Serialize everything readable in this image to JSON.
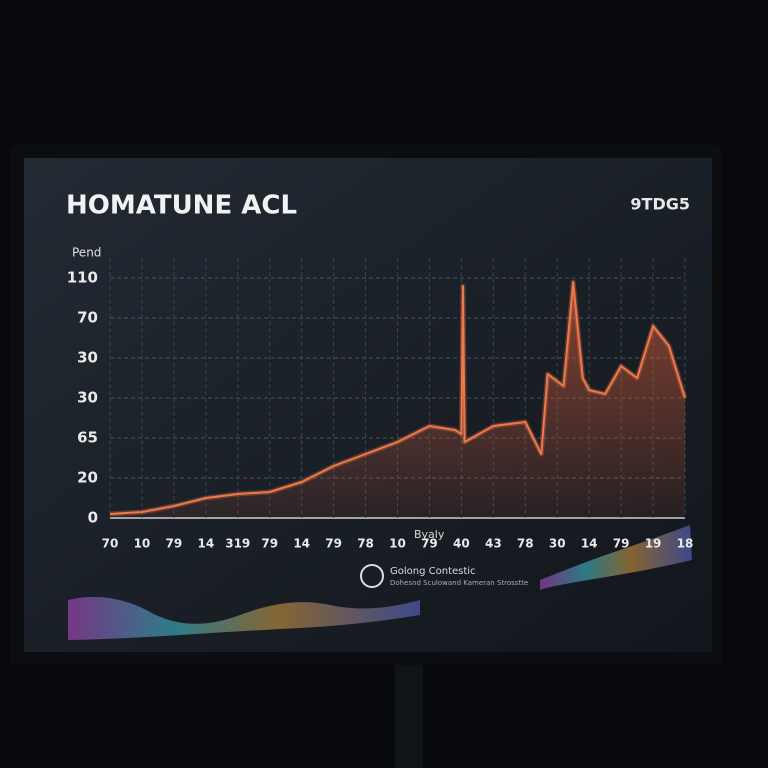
{
  "chart_data": {
    "type": "line",
    "title": "HOMATUNE ACL",
    "badge": "9TDG5",
    "y_label": "Pend",
    "x_label": "Byaly",
    "footer_title": "Golong Contestic",
    "footer_subtitle": "Dohesnd Sculowand Kameran Strosstte",
    "color": "#f0784a",
    "grid": true,
    "xlim": [
      0,
      18
    ],
    "ylim": [
      0,
      6
    ],
    "yticks": [
      {
        "value": 0,
        "label": "0"
      },
      {
        "value": 1,
        "label": "20"
      },
      {
        "value": 2,
        "label": "65"
      },
      {
        "value": 3,
        "label": "30"
      },
      {
        "value": 4,
        "label": "30"
      },
      {
        "value": 5,
        "label": "70"
      },
      {
        "value": 6,
        "label": "110"
      }
    ],
    "xticks": [
      {
        "value": 0,
        "label": "70"
      },
      {
        "value": 1,
        "label": "10"
      },
      {
        "value": 2,
        "label": "79"
      },
      {
        "value": 3,
        "label": "14"
      },
      {
        "value": 4,
        "label": "319"
      },
      {
        "value": 5,
        "label": "79"
      },
      {
        "value": 6,
        "label": "14"
      },
      {
        "value": 7,
        "label": "79"
      },
      {
        "value": 8,
        "label": "78"
      },
      {
        "value": 9,
        "label": "10"
      },
      {
        "value": 10,
        "label": "79"
      },
      {
        "value": 11,
        "label": "40"
      },
      {
        "value": 12,
        "label": "43"
      },
      {
        "value": 13,
        "label": "78"
      },
      {
        "value": 14,
        "label": "30"
      },
      {
        "value": 15,
        "label": "14"
      },
      {
        "value": 16,
        "label": "79"
      },
      {
        "value": 17,
        "label": "19"
      },
      {
        "value": 18,
        "label": "18"
      }
    ],
    "x": [
      0,
      1,
      2,
      3,
      4,
      5,
      6,
      7,
      8,
      9,
      10,
      10.8,
      11,
      11.05,
      11.1,
      12,
      13,
      13.5,
      13.7,
      14.2,
      14.5,
      14.8,
      15,
      15.5,
      16,
      16.5,
      17,
      17.5,
      18
    ],
    "values": [
      0.1,
      0.15,
      0.3,
      0.5,
      0.6,
      0.65,
      0.9,
      1.3,
      1.6,
      1.9,
      2.3,
      2.2,
      2.1,
      5.8,
      1.9,
      2.3,
      2.4,
      1.6,
      3.6,
      3.3,
      5.9,
      3.5,
      3.2,
      3.1,
      3.8,
      3.5,
      4.8,
      4.3,
      3.0
    ]
  }
}
